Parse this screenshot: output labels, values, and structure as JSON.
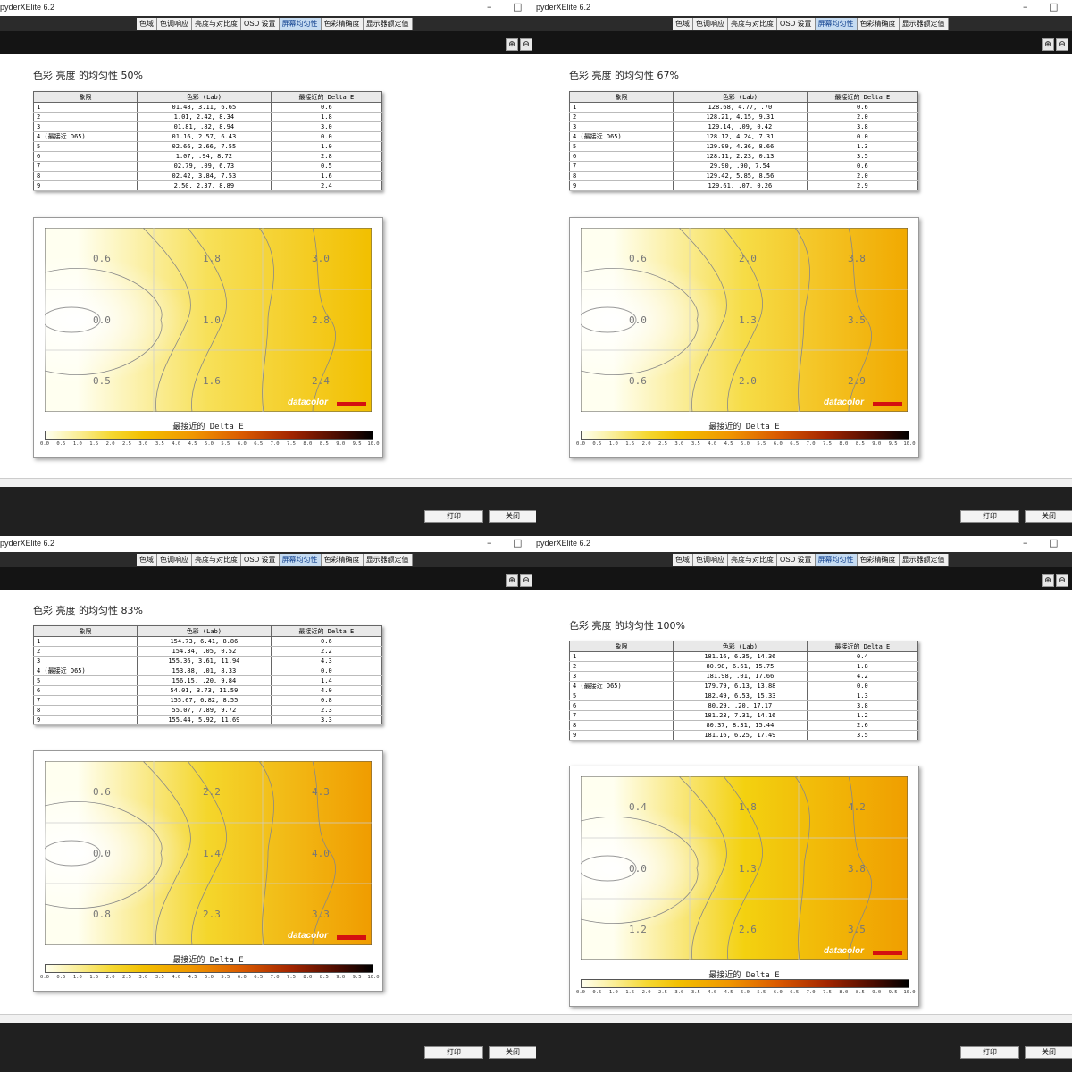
{
  "window": {
    "title": "pyderXElite 6.2",
    "minimize_glyph": "–",
    "maximize_glyph": "□"
  },
  "tabs": [
    "色域",
    "色调响应",
    "亮度与对比度",
    "OSD 设置",
    "屏幕均匀性",
    "色彩精确度",
    "显示器额定值"
  ],
  "active_tab": "屏幕均匀性",
  "table_headers": [
    "象限",
    "色彩 (Lab)",
    "最接近的 Delta E"
  ],
  "scale_title": "最接近的 Delta E",
  "scale_ticks": [
    "0.0",
    "0.5",
    "1.0",
    "1.5",
    "2.0",
    "2.5",
    "3.0",
    "3.5",
    "4.0",
    "4.5",
    "5.0",
    "5.5",
    "6.0",
    "6.5",
    "7.0",
    "7.5",
    "8.0",
    "8.5",
    "9.0",
    "9.5",
    "10.0"
  ],
  "brand": "datacolor",
  "buttons": {
    "print": "打印",
    "close": "关闭"
  },
  "colors": {
    "tab_active_bg": "#c6dcf2",
    "brand_red": "#d41010",
    "toolbar_bg": "#141414"
  },
  "panels": [
    {
      "heading": "色彩 亮度 的均匀性 50%",
      "rows": [
        [
          "1",
          "01.48,   3.11,   6.65",
          "0.6"
        ],
        [
          "2",
          "1.01,   2.42,   8.34",
          "1.8"
        ],
        [
          "3",
          "01.81,    .82,   8.94",
          "3.0"
        ],
        [
          "4 (最接近 D65)",
          "01.16,   2.57,   6.43",
          "0.0"
        ],
        [
          "5",
          "02.66,   2.66,   7.55",
          "1.0"
        ],
        [
          "6",
          "1.07,    .94,   8.72",
          "2.8"
        ],
        [
          "7",
          "02.79,    .09,   6.73",
          "0.5"
        ],
        [
          "8",
          "02.42,   3.84,   7.53",
          "1.6"
        ],
        [
          "9",
          "2.50,   2.37,   8.89",
          "2.4"
        ]
      ],
      "grid": [
        "0.6",
        "1.8",
        "3.0",
        "0.0",
        "1.0",
        "2.8",
        "0.5",
        "1.6",
        "2.4"
      ]
    },
    {
      "heading": "色彩 亮度 的均匀性 67%",
      "rows": [
        [
          "1",
          "128.68,   4.77,    .70",
          "0.6"
        ],
        [
          "2",
          "128.21,   4.15,   9.31",
          "2.0"
        ],
        [
          "3",
          "129.14,    .09,   0.42",
          "3.8"
        ],
        [
          "4 (最接近 D65)",
          "128.12,   4.24,   7.31",
          "0.0"
        ],
        [
          "5",
          "129.99,   4.36,   8.66",
          "1.3"
        ],
        [
          "6",
          "128.11,   2.23,   0.13",
          "3.5"
        ],
        [
          "7",
          "29.90,    .90,   7.54",
          "0.6"
        ],
        [
          "8",
          "129.42,   5.85,   8.56",
          "2.0"
        ],
        [
          "9",
          "129.61,    .07,   0.26",
          "2.9"
        ]
      ],
      "grid": [
        "0.6",
        "2.0",
        "3.8",
        "0.0",
        "1.3",
        "3.5",
        "0.6",
        "2.0",
        "2.9"
      ]
    },
    {
      "heading": "色彩 亮度 的均匀性 83%",
      "rows": [
        [
          "1",
          "154.73,   6.41,   8.86",
          "0.6"
        ],
        [
          "2",
          "154.34,    .05,   0.52",
          "2.2"
        ],
        [
          "3",
          "155.36,   3.61,  11.94",
          "4.3"
        ],
        [
          "4 (最接近 D65)",
          "153.88,    .01,   8.33",
          "0.0"
        ],
        [
          "5",
          "156.15,    .20,   9.84",
          "1.4"
        ],
        [
          "6",
          "54.01,   3.73,  11.59",
          "4.0"
        ],
        [
          "7",
          "155.67,   6.82,   8.55",
          "0.8"
        ],
        [
          "8",
          "55.07,   7.89,   9.72",
          "2.3"
        ],
        [
          "9",
          "155.44,   5.92,  11.69",
          "3.3"
        ]
      ],
      "grid": [
        "0.6",
        "2.2",
        "4.3",
        "0.0",
        "1.4",
        "4.0",
        "0.8",
        "2.3",
        "3.3"
      ]
    },
    {
      "heading": "色彩 亮度 的均匀性 100%",
      "rows": [
        [
          "1",
          "181.16,   6.35,  14.36",
          "0.4"
        ],
        [
          "2",
          "80.98,   6.61,  15.75",
          "1.8"
        ],
        [
          "3",
          "181.98,    .01,  17.66",
          "4.2"
        ],
        [
          "4 (最接近 D65)",
          "179.79,   6.13,  13.88",
          "0.0"
        ],
        [
          "5",
          "182.49,   6.53,  15.33",
          "1.3"
        ],
        [
          "6",
          "80.29,    .20,  17.17",
          "3.8"
        ],
        [
          "7",
          "181.23,   7.31,  14.16",
          "1.2"
        ],
        [
          "8",
          "80.37,   8.31,  15.44",
          "2.6"
        ],
        [
          "9",
          "181.16,   6.25,  17.49",
          "3.5"
        ]
      ],
      "grid": [
        "0.4",
        "1.8",
        "4.2",
        "0.0",
        "1.3",
        "3.8",
        "1.2",
        "2.6",
        "3.5"
      ]
    }
  ]
}
